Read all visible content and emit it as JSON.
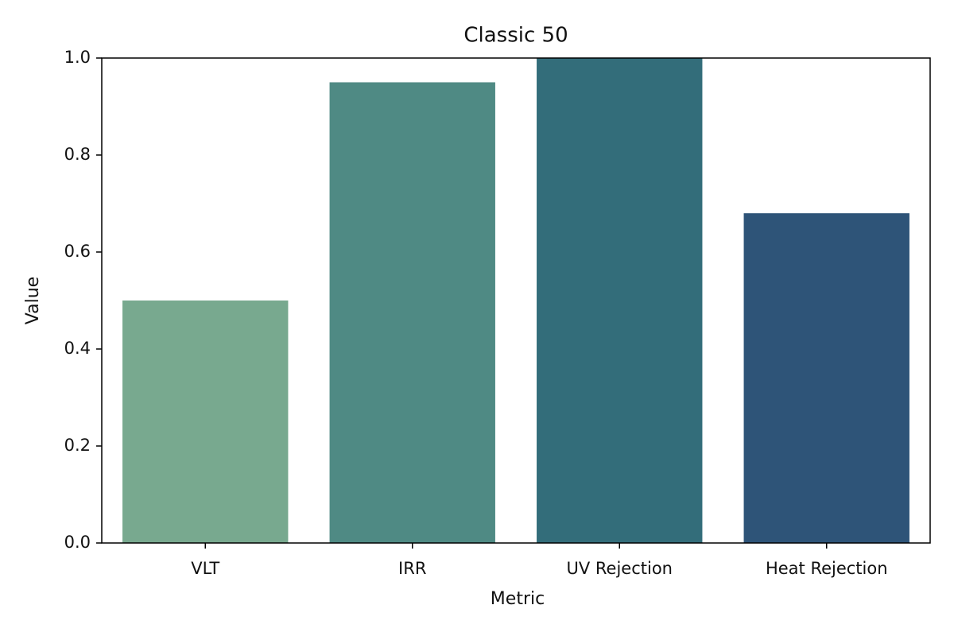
{
  "chart_data": {
    "type": "bar",
    "title": "Classic 50",
    "x_label": "Metric",
    "y_label": "Value",
    "categories": [
      "VLT",
      "IRR",
      "UV Rejection",
      "Heat Rejection"
    ],
    "values": [
      0.5,
      0.95,
      1.0,
      0.68
    ],
    "colors": [
      "#78a98f",
      "#4f8a84",
      "#336d7a",
      "#2e5478"
    ],
    "ylim": [
      0,
      1
    ],
    "yticks": [
      {
        "value": 0,
        "label": "0.0"
      },
      0.2,
      0.4,
      0.6,
      0.8,
      {
        "value": 1,
        "label": "1.0"
      }
    ],
    "grid": false
  }
}
